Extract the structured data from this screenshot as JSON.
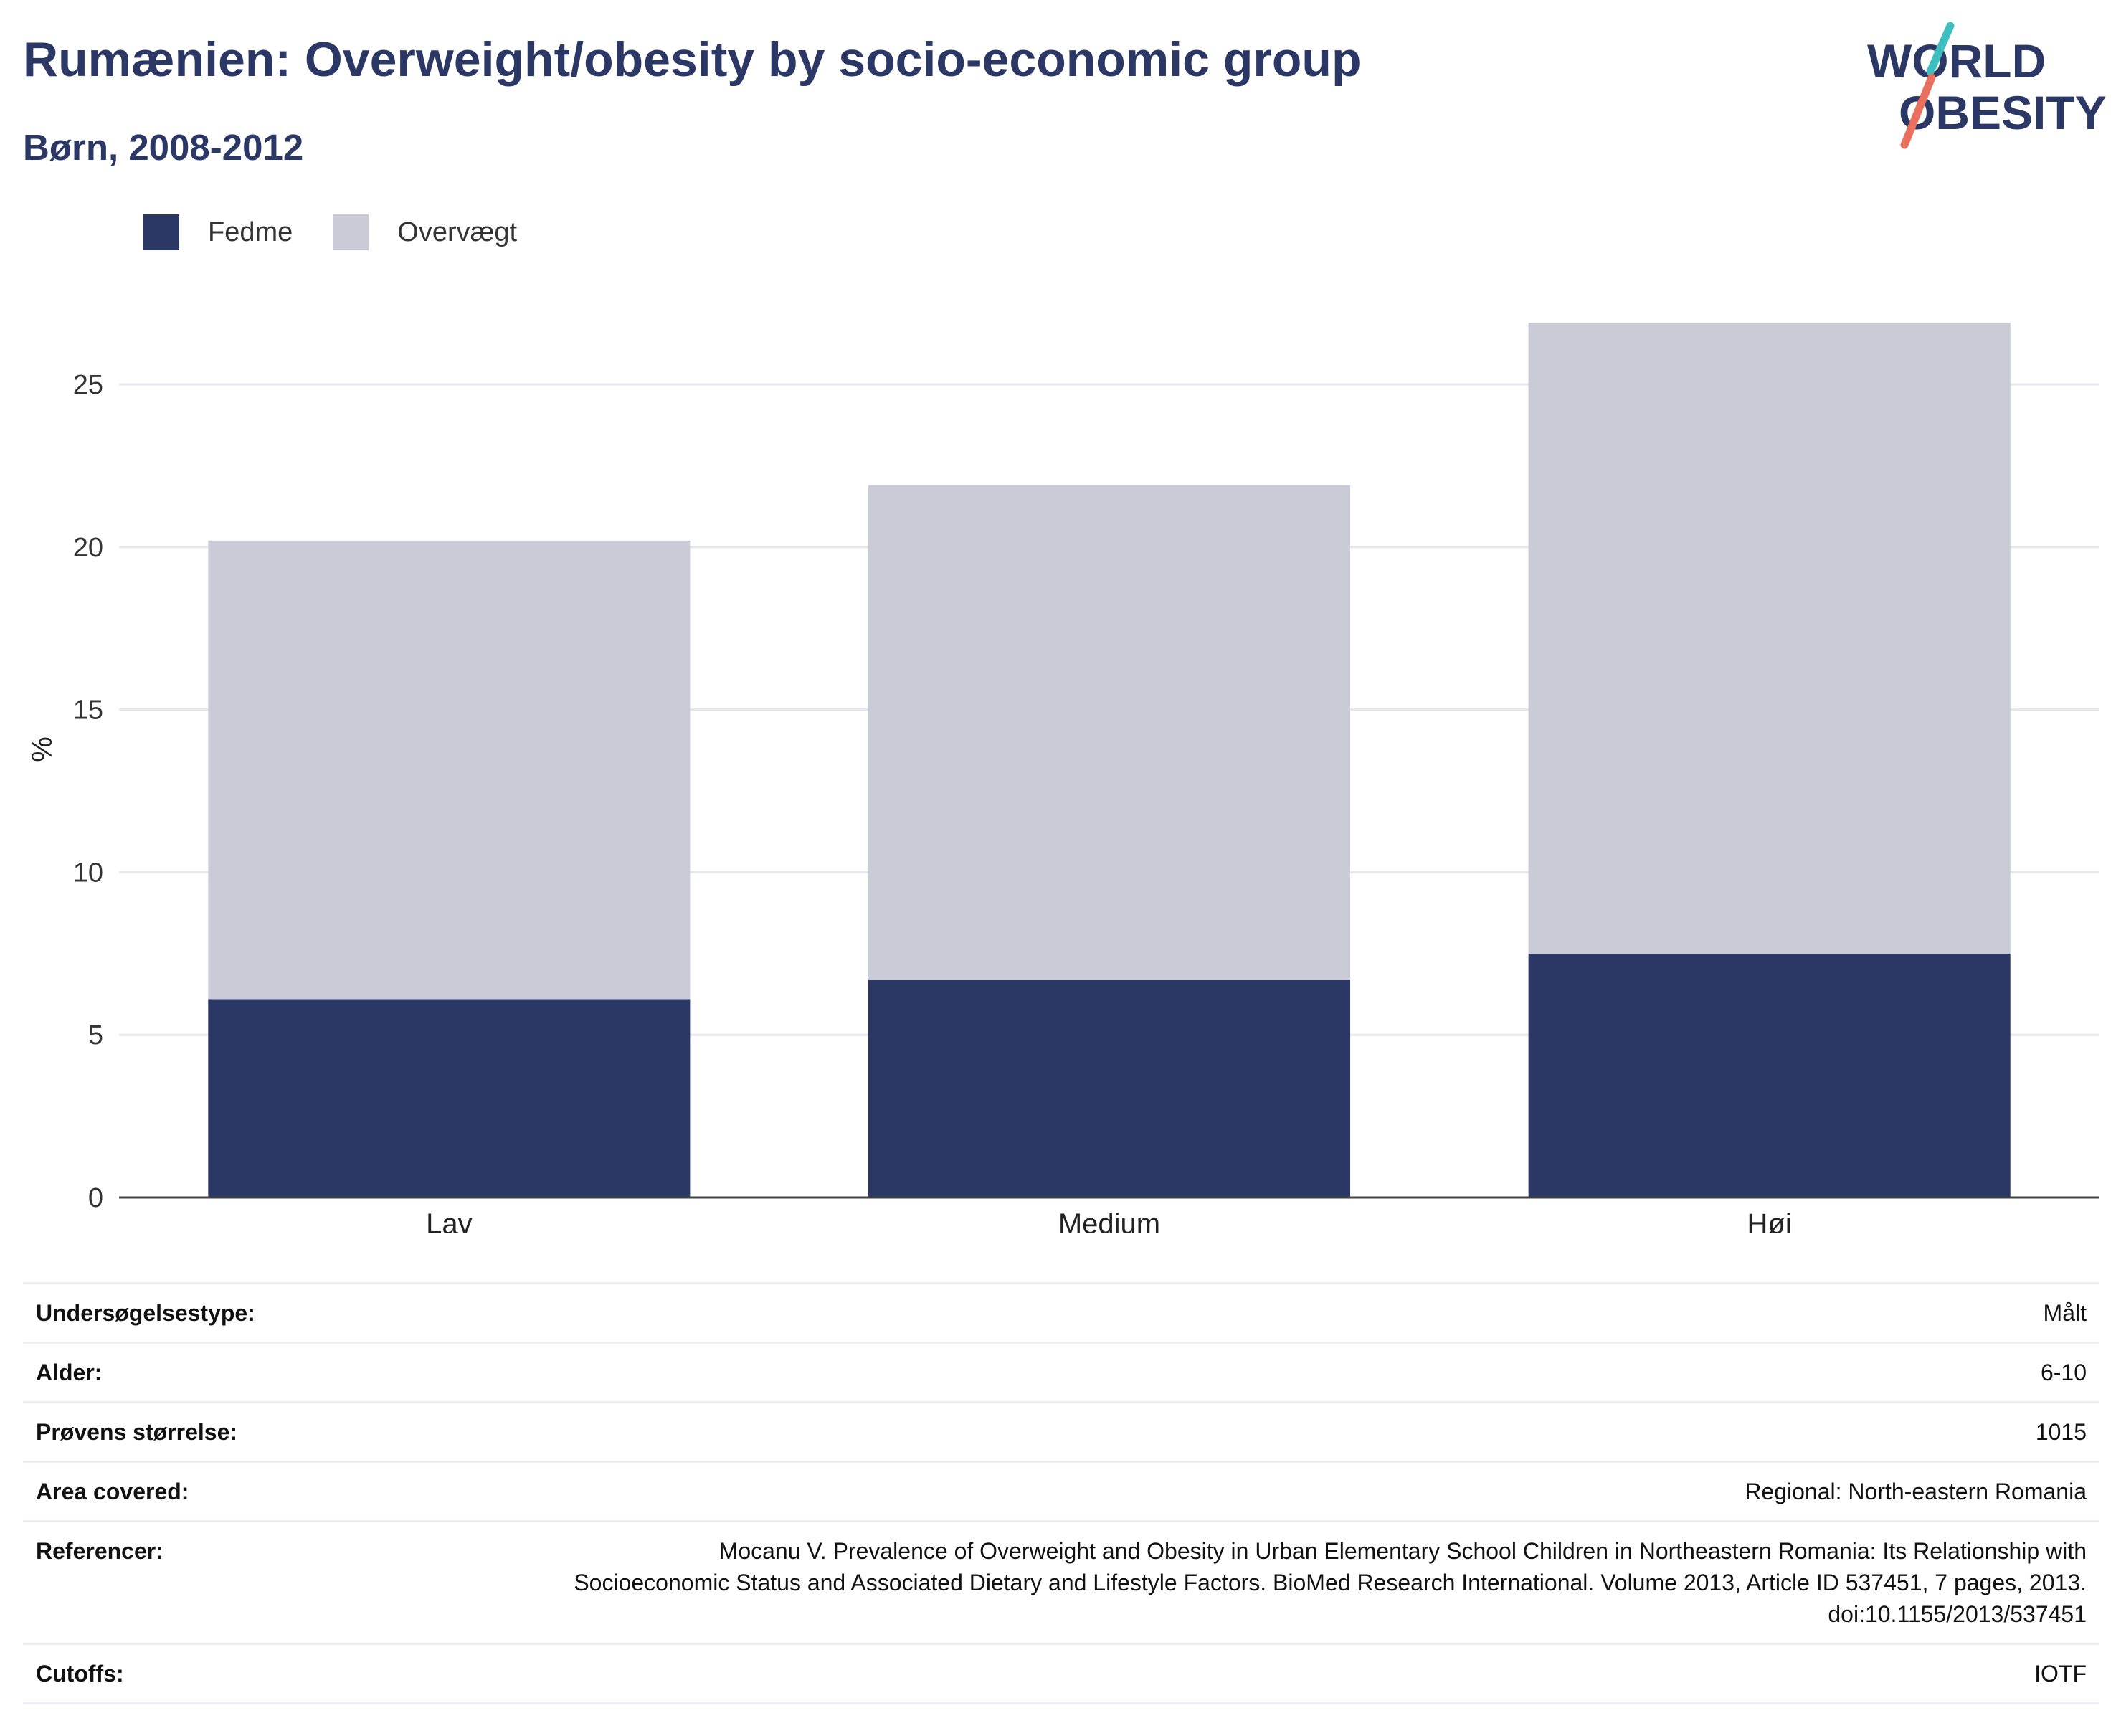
{
  "header": {
    "title": "Rumænien: Overweight/obesity by socio-economic group",
    "subtitle": "Børn, 2008-2012"
  },
  "logo": {
    "line1": "WORLD",
    "line2": "OBESITY",
    "accent_teal": "#3dbfbf",
    "accent_coral": "#e8705d"
  },
  "legend": {
    "items": [
      {
        "label": "Fedme",
        "color": "#2b3764"
      },
      {
        "label": "Overvægt",
        "color": "#c9cbd6"
      }
    ]
  },
  "chart_data": {
    "type": "bar",
    "stacked": true,
    "categories": [
      "Lav",
      "Medium",
      "Høj"
    ],
    "series": [
      {
        "name": "Fedme",
        "values": [
          6.1,
          6.7,
          7.5
        ],
        "color": "#2b3764"
      },
      {
        "name": "Overvægt",
        "values": [
          14.1,
          15.2,
          19.4
        ],
        "color": "#c9cbd6"
      }
    ],
    "ylabel": "%",
    "ylim": [
      0,
      28
    ],
    "yticks": [
      0,
      5,
      10,
      15,
      20,
      25
    ],
    "grid": true,
    "legend_position": "top-left"
  },
  "meta": {
    "rows": [
      {
        "key": "Undersøgelsestype:",
        "value": "Målt"
      },
      {
        "key": "Alder:",
        "value": "6-10"
      },
      {
        "key": "Prøvens størrelse:",
        "value": "1015"
      },
      {
        "key": "Area covered:",
        "value": "Regional: North-eastern Romania"
      },
      {
        "key": "Referencer:",
        "value": "Mocanu V. Prevalence of Overweight and Obesity in Urban Elementary School Children in Northeastern Romania: Its Relationship with Socioeconomic Status and Associated Dietary and Lifestyle Factors. BioMed Research International. Volume 2013, Article ID 537451, 7 pages, 2013. doi:10.1155/2013/537451"
      },
      {
        "key": "Cutoffs:",
        "value": "IOTF"
      }
    ]
  }
}
